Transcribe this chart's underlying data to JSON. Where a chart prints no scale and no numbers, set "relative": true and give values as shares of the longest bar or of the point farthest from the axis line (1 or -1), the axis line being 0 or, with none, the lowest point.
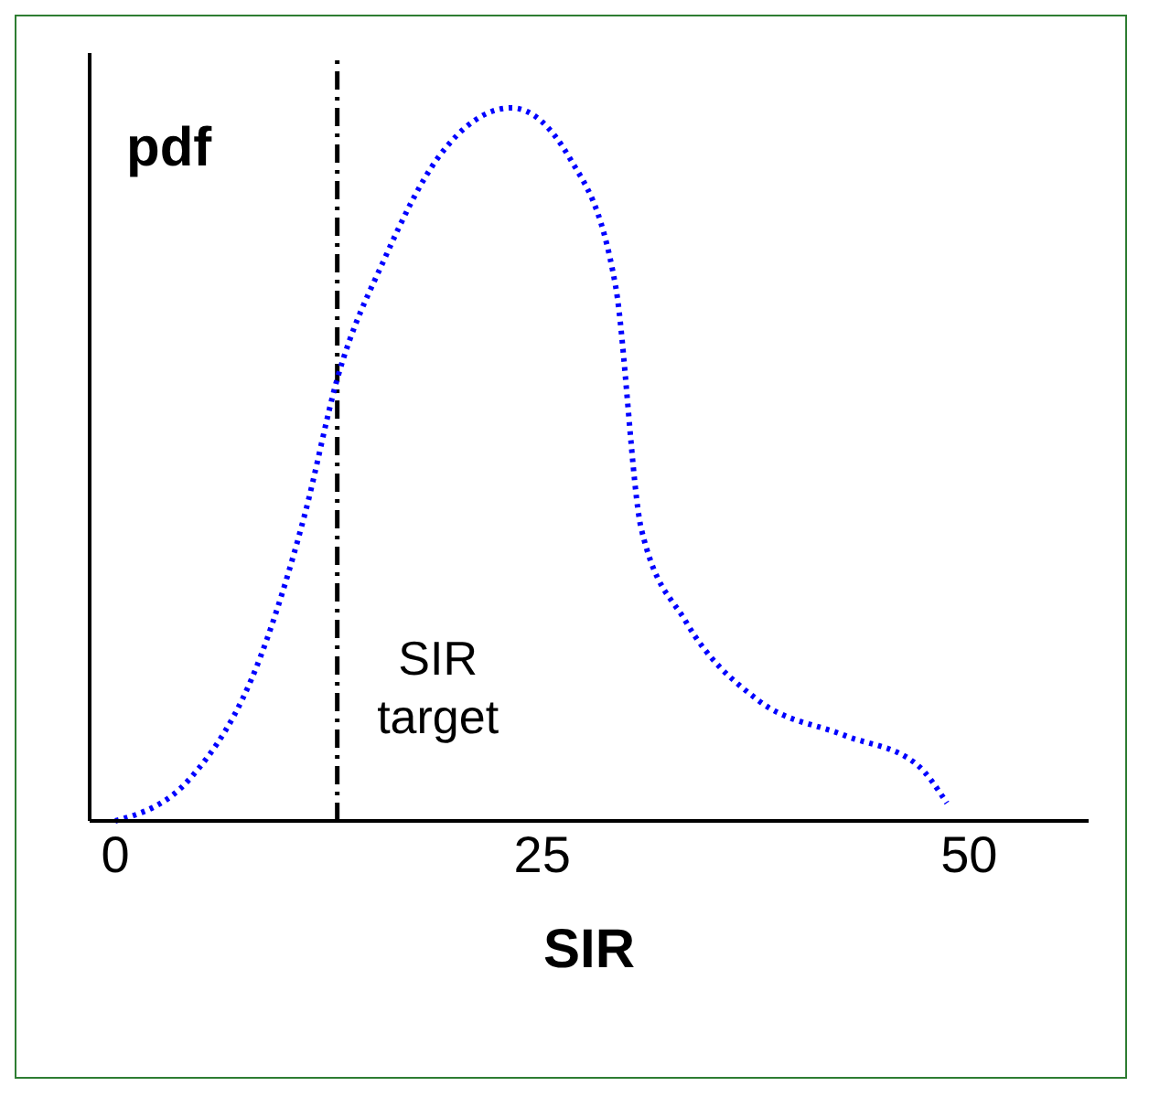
{
  "chart_data": {
    "type": "line",
    "relative": true,
    "xlabel": "SIR",
    "ylabel": "pdf",
    "x": [
      0,
      4.4,
      8.5,
      11.1,
      13.0,
      15.8,
      18.9,
      23.2,
      26.6,
      29.3,
      30.8,
      33.4,
      37.6,
      42.7,
      46.9,
      48.7
    ],
    "values": [
      0,
      0.06,
      0.23,
      0.43,
      0.62,
      0.79,
      0.93,
      1,
      0.93,
      0.75,
      0.41,
      0.28,
      0.17,
      0.12,
      0.08,
      0.025
    ],
    "color": "#0000ff",
    "line_style": "dotted",
    "marker": "none",
    "xlim": [
      -1.5,
      57
    ],
    "xticks": [
      0,
      25,
      50
    ],
    "grid": false,
    "legend": false,
    "ref_lines": [
      {
        "axis": "x",
        "value": 13.0,
        "label": "SIR target",
        "color": "#000000",
        "line_style": "dashdot"
      }
    ]
  }
}
